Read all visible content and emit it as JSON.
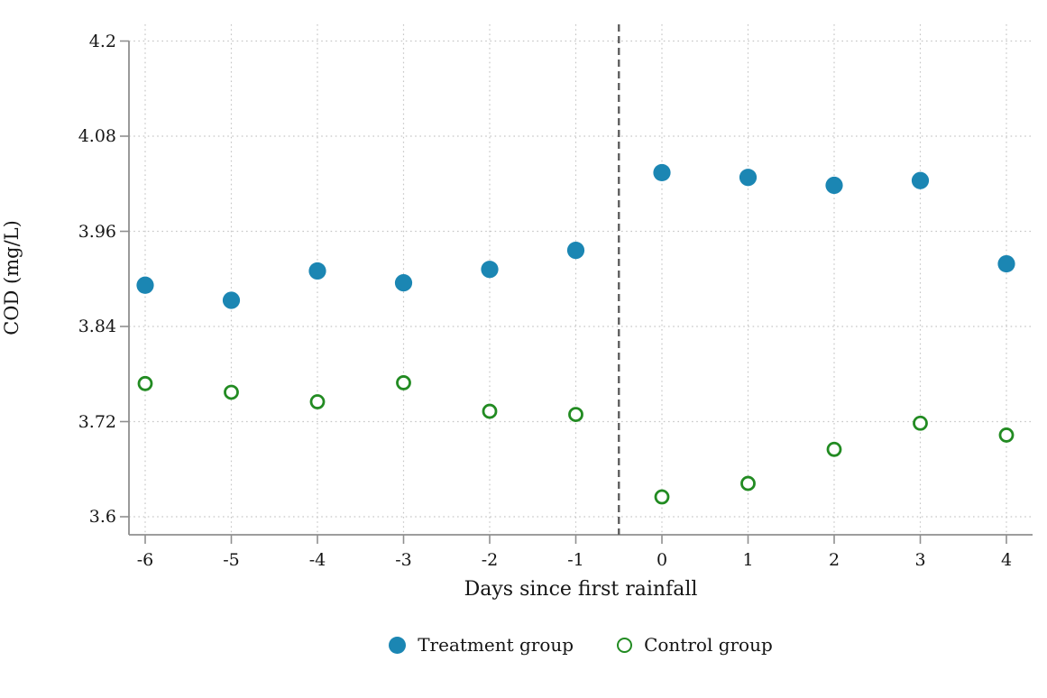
{
  "chart_data": {
    "type": "scatter",
    "title": "",
    "xlabel": "Days since first rainfall",
    "ylabel": "COD (mg/L)",
    "x_ticks": [
      -6,
      -5,
      -4,
      -3,
      -2,
      -1,
      0,
      1,
      2,
      3,
      4
    ],
    "y_ticks": [
      3.6,
      3.72,
      3.84,
      3.96,
      4.08,
      4.2
    ],
    "ylim": [
      3.6,
      4.2
    ],
    "xlim": [
      -6.2,
      4.3
    ],
    "grid": {
      "style": "dotted",
      "horizontal": true,
      "vertical": true,
      "color": "#c6c6c6"
    },
    "reference_line": {
      "x": -0.5,
      "style": "dashed",
      "color": "#5f5f5f"
    },
    "axis_color": "#8f8f8f",
    "text_color": "#151515",
    "legend_position": "bottom-center",
    "series": [
      {
        "name": "Treatment group",
        "marker": "filled-circle",
        "color": "#1b86b3",
        "x": [
          -6,
          -5,
          -4,
          -3,
          -2,
          -1,
          0,
          1,
          2,
          3,
          4
        ],
        "y": [
          3.892,
          3.873,
          3.91,
          3.895,
          3.912,
          3.936,
          4.034,
          4.028,
          4.018,
          4.024,
          3.919
        ]
      },
      {
        "name": "Control group",
        "marker": "open-circle",
        "color": "#228b22",
        "x": [
          -6,
          -5,
          -4,
          -3,
          -2,
          -1,
          0,
          1,
          2,
          3,
          4
        ],
        "y": [
          3.768,
          3.757,
          3.745,
          3.769,
          3.733,
          3.729,
          3.625,
          3.642,
          3.685,
          3.718,
          3.703
        ]
      }
    ]
  }
}
